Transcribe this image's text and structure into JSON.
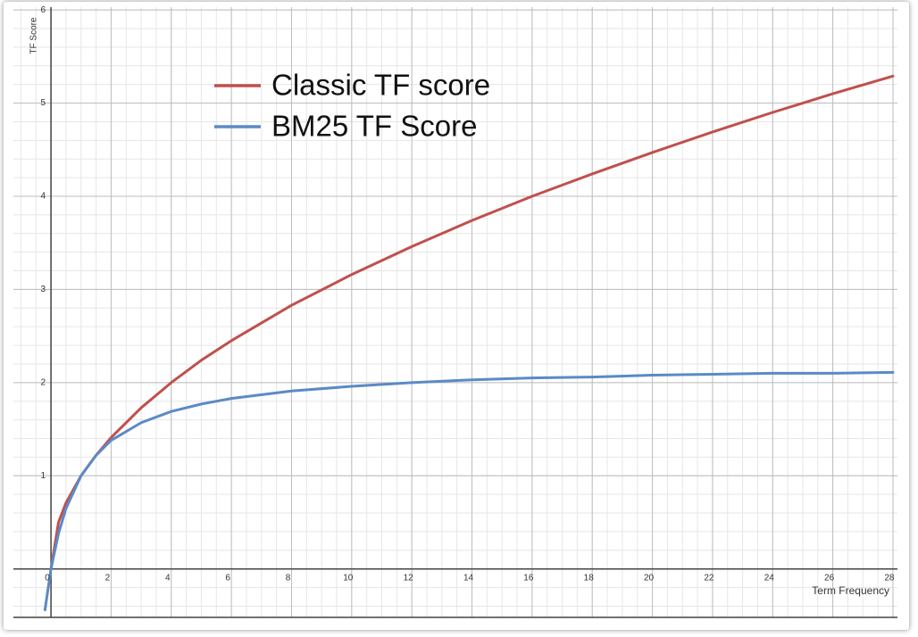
{
  "chart_data": {
    "type": "line",
    "x_label": "Term Frequency",
    "y_label": "TF Score",
    "x": [
      -0.2,
      0,
      0.25,
      0.5,
      1,
      1.5,
      2,
      3,
      4,
      5,
      6,
      8,
      10,
      12,
      14,
      16,
      18,
      20,
      22,
      24,
      26,
      28
    ],
    "series": [
      {
        "name": "Classic TF score",
        "color": "#c0504d",
        "values": [
          null,
          0,
          0.5,
          0.71,
          1,
          1.22,
          1.41,
          1.73,
          2,
          2.24,
          2.45,
          2.83,
          3.16,
          3.46,
          3.74,
          4,
          4.24,
          4.47,
          4.69,
          4.9,
          5.1,
          5.29
        ]
      },
      {
        "name": "BM25 TF Score",
        "color": "#5b8ac6",
        "values": [
          -0.44,
          0,
          0.38,
          0.65,
          1,
          1.22,
          1.38,
          1.57,
          1.69,
          1.77,
          1.83,
          1.91,
          1.96,
          2,
          2.03,
          2.05,
          2.06,
          2.08,
          2.09,
          2.1,
          2.1,
          2.11
        ]
      }
    ],
    "xlim": [
      -1.25,
      28.15
    ],
    "ylim": [
      -0.52,
      6.03
    ],
    "xticks": [
      0,
      2,
      4,
      6,
      8,
      10,
      12,
      14,
      16,
      18,
      20,
      22,
      24,
      26,
      28
    ],
    "yticks": [
      1,
      2,
      3,
      4,
      5,
      6
    ],
    "grid": true,
    "legend": "top-left"
  }
}
